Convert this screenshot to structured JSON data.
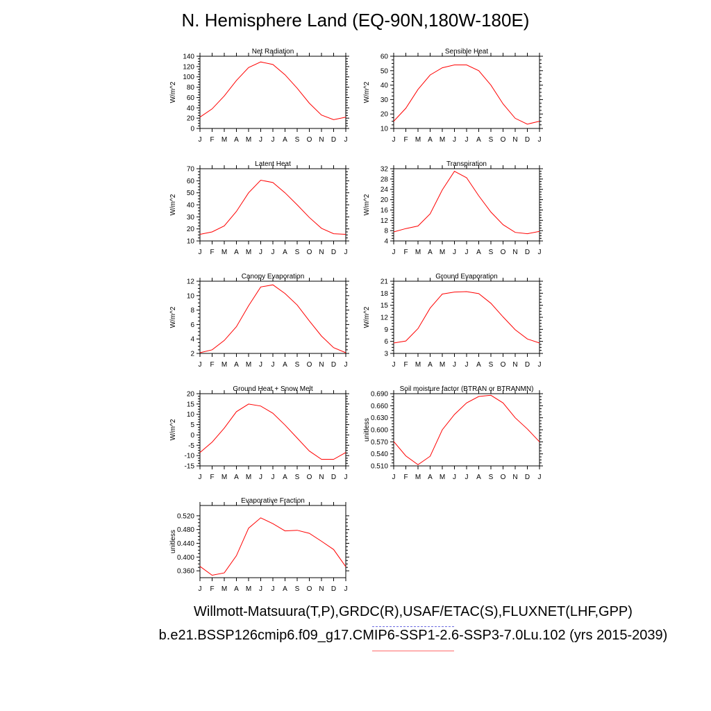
{
  "title": "N. Hemisphere Land (EQ-90N,180W-180E)",
  "footer": {
    "obs_line": "Willmott-Matsuura(T,P),GRDC(R),USAF/ETAC(S),FLUXNET(LHF,GPP)",
    "case_line": "b.e21.BSSP126cmip6.f09_g17.CMIP6-SSP1-2.6-SSP3-7.0Lu.102 (yrs 2015-2039)"
  },
  "colors": {
    "series": "#ff0000",
    "obs_legend": "#6a6ae0",
    "case_legend": "#ff6a6a"
  },
  "months": [
    "J",
    "F",
    "M",
    "A",
    "M",
    "J",
    "J",
    "A",
    "S",
    "O",
    "N",
    "D",
    "J"
  ],
  "chart_data": [
    {
      "type": "line",
      "title": "Net Radiation",
      "ylabel": "W/m^2",
      "yticks": [
        0,
        20,
        40,
        60,
        80,
        100,
        120,
        140
      ],
      "ylim": [
        0,
        140
      ],
      "values": [
        22,
        38,
        63,
        93,
        118,
        129,
        124,
        104,
        78,
        49,
        26,
        17,
        22
      ]
    },
    {
      "type": "line",
      "title": "Sensible Heat",
      "ylabel": "W/m^2",
      "yticks": [
        10,
        20,
        30,
        40,
        50,
        60
      ],
      "ylim": [
        10,
        60
      ],
      "values": [
        15,
        24,
        37,
        47,
        52,
        54,
        54,
        50,
        40,
        27,
        17,
        13,
        15
      ]
    },
    {
      "type": "line",
      "title": "Latent Heat",
      "ylabel": "W/m^2",
      "yticks": [
        10,
        20,
        30,
        40,
        50,
        60,
        70
      ],
      "ylim": [
        10,
        70
      ],
      "values": [
        15.5,
        17.5,
        22.5,
        34.5,
        50,
        60.5,
        58.5,
        50,
        40,
        29.5,
        20.5,
        16,
        15.5
      ]
    },
    {
      "type": "line",
      "title": "Transpiration",
      "ylabel": "W/m^2",
      "yticks": [
        4,
        8,
        12,
        16,
        20,
        24,
        28,
        32
      ],
      "ylim": [
        4,
        32
      ],
      "values": [
        7.5,
        8.8,
        9.8,
        14.5,
        23.8,
        31,
        28.5,
        21.5,
        15.2,
        10.3,
        7.3,
        6.8,
        7.7
      ]
    },
    {
      "type": "line",
      "title": "Canopy Evaporation",
      "ylabel": "W/m^2",
      "yticks": [
        2,
        4,
        6,
        8,
        10,
        12
      ],
      "ylim": [
        2,
        12
      ],
      "values": [
        2.1,
        2.5,
        3.8,
        5.7,
        8.6,
        11.2,
        11.5,
        10.3,
        8.7,
        6.5,
        4.4,
        2.8,
        2.1
      ]
    },
    {
      "type": "line",
      "title": "Ground Evaporation",
      "ylabel": "W/m^2",
      "yticks": [
        3,
        6,
        9,
        12,
        15,
        18,
        21
      ],
      "ylim": [
        3,
        21
      ],
      "values": [
        5.6,
        6.1,
        9.2,
        14.3,
        17.8,
        18.3,
        18.4,
        17.9,
        15.5,
        12.1,
        8.9,
        6.6,
        5.6
      ]
    },
    {
      "type": "line",
      "title": "Ground Heat + Snow Melt",
      "ylabel": "W/m^2",
      "yticks": [
        -15,
        -10,
        -5,
        0,
        5,
        10,
        15,
        20
      ],
      "ylim": [
        -15,
        20
      ],
      "values": [
        -8.5,
        -3.5,
        3.3,
        11.3,
        15,
        14,
        10.5,
        4.8,
        -1.5,
        -7.8,
        -11.8,
        -11.8,
        -8.5
      ]
    },
    {
      "type": "line",
      "title": "Soil moisture factor (BTRAN or BTRANMN)",
      "ylabel": "unitless",
      "yticks": [
        "0.510",
        "0.540",
        "0.570",
        "0.600",
        "0.630",
        "0.660",
        "0.690"
      ],
      "ylim": [
        0.51,
        0.69
      ],
      "values": [
        0.571,
        0.535,
        0.513,
        0.534,
        0.6,
        0.638,
        0.667,
        0.683,
        0.686,
        0.667,
        0.63,
        0.602,
        0.57
      ]
    },
    {
      "type": "line",
      "title": "Evaporative Fraction",
      "ylabel": "unitless",
      "yticks": [
        "0.360",
        "0.400",
        "0.440",
        "0.480",
        "0.520"
      ],
      "ylim": [
        0.34,
        0.55
      ],
      "values": [
        0.373,
        0.347,
        0.354,
        0.404,
        0.484,
        0.514,
        0.497,
        0.476,
        0.478,
        0.469,
        0.446,
        0.422,
        0.372
      ]
    }
  ]
}
